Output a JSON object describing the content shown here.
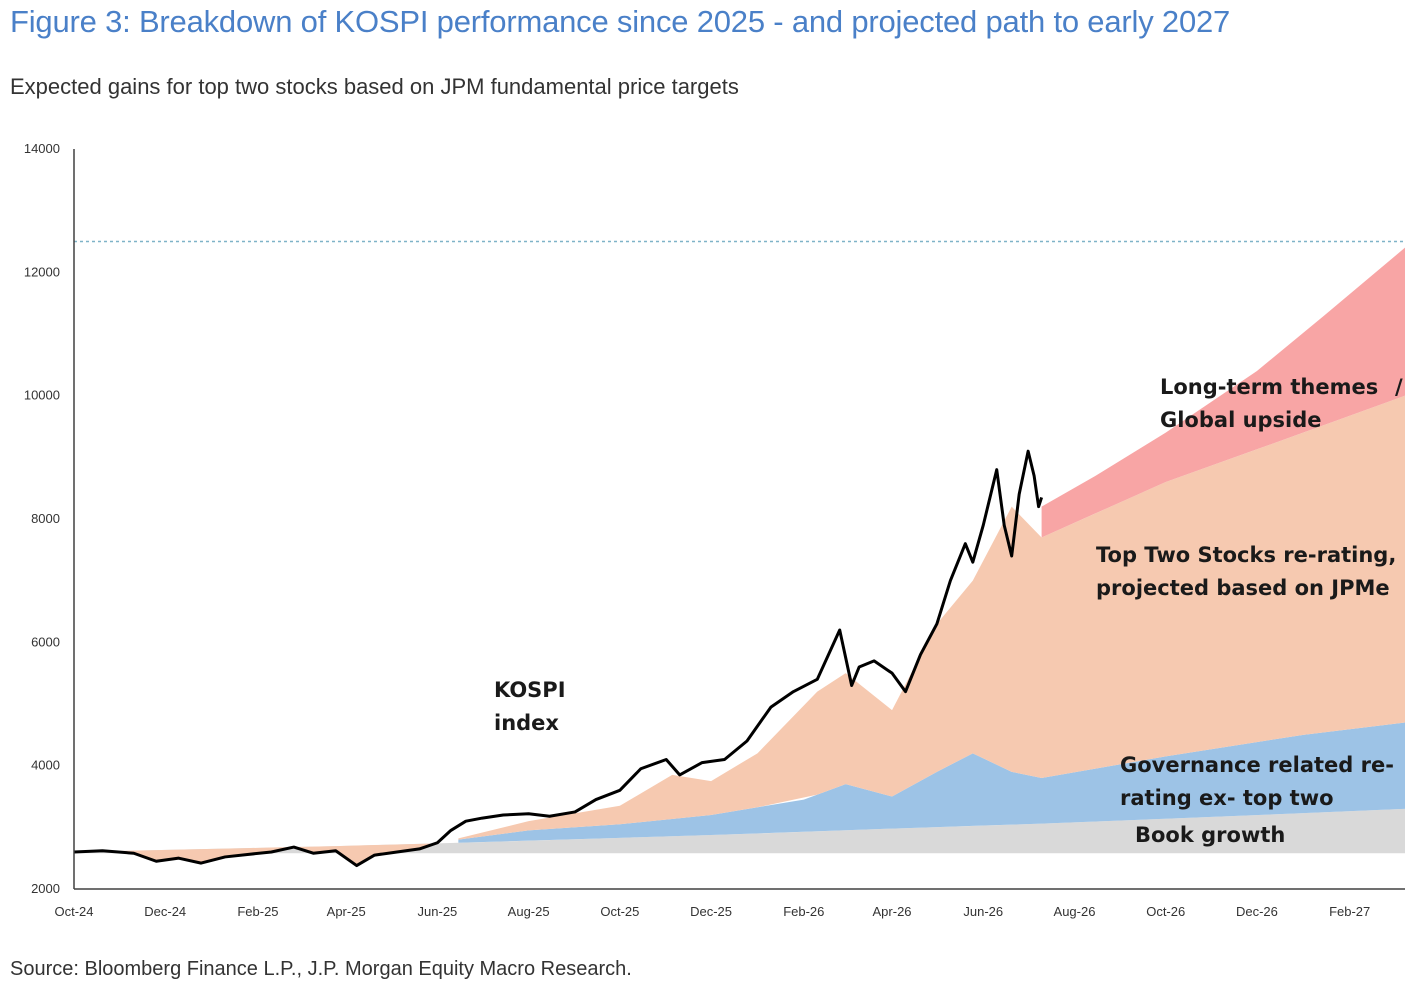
{
  "title": "Figure 3: Breakdown of KOSPI performance since 2025 - and projected path to early 2027",
  "subtitle": "Expected gains for top two stocks based on JPM fundamental price targets",
  "source": "Source: Bloomberg Finance L.P., J.P. Morgan Equity Macro Research.",
  "colors": {
    "title": "#4a80c8",
    "book_growth": "#d9d9d9",
    "governance": "#9dc3e6",
    "top_two": "#f6c9b0",
    "long_term": "#f8a5a5",
    "kospi_line": "#000000",
    "target_line": "#7fb3c8"
  },
  "chart_data": {
    "type": "area",
    "x_tick_labels": [
      "Oct-24",
      "Dec-24",
      "Feb-25",
      "Apr-25",
      "Jun-25",
      "Aug-25",
      "Oct-25",
      "Dec-25",
      "Feb-26",
      "Apr-26",
      "Jun-26",
      "Aug-26",
      "Oct-26",
      "Dec-26",
      "Feb-27"
    ],
    "y_tick_labels": [
      "2000",
      "4000",
      "6000",
      "8000",
      "10000",
      "12000",
      "14000"
    ],
    "ylim": [
      2000,
      14000
    ],
    "xlim": [
      "2024-10-01",
      "2027-03-10"
    ],
    "reference_line": {
      "value": 12500,
      "style": "dotted"
    },
    "series": [
      {
        "name": "Book growth",
        "annotation": [
          "Book growth"
        ],
        "x": [
          "2024-10-01",
          "2025-01-01",
          "2025-04-01",
          "2025-07-01",
          "2025-10-01",
          "2026-01-01",
          "2026-04-01",
          "2026-07-10",
          "2026-10-01",
          "2027-01-01",
          "2027-03-10"
        ],
        "y": [
          2600,
          2650,
          2700,
          2760,
          2830,
          2900,
          2980,
          3060,
          3140,
          3230,
          3300
        ]
      },
      {
        "name": "Governance related re-rating ex- top two",
        "annotation": [
          "Governance related re-",
          "rating ex- top two"
        ],
        "x": [
          "2025-06-15",
          "2025-08-01",
          "2025-10-01",
          "2025-12-01",
          "2026-02-01",
          "2026-03-01",
          "2026-04-01",
          "2026-05-01",
          "2026-05-25",
          "2026-06-20",
          "2026-07-10",
          "2026-10-01",
          "2027-01-01",
          "2027-03-10"
        ],
        "y": [
          2800,
          2950,
          3050,
          3200,
          3450,
          3700,
          3500,
          3900,
          4200,
          3900,
          3800,
          4150,
          4500,
          4700
        ]
      },
      {
        "name": "Top Two Stocks re-rating, projected based on JPMe",
        "annotation": [
          "Top Two Stocks re-rating,",
          "projected based on JPMe"
        ],
        "x": [
          "2025-06-15",
          "2025-08-01",
          "2025-10-01",
          "2025-11-05",
          "2025-12-01",
          "2026-01-01",
          "2026-02-10",
          "2026-03-01",
          "2026-04-01",
          "2026-05-01",
          "2026-05-25",
          "2026-06-20",
          "2026-07-10",
          "2026-10-01",
          "2027-01-01",
          "2027-03-10"
        ],
        "y": [
          2820,
          3100,
          3350,
          3850,
          3750,
          4200,
          5200,
          5500,
          4900,
          6300,
          7000,
          8200,
          7700,
          8600,
          9400,
          10000
        ]
      },
      {
        "name": "Long-term themes / Global upside",
        "annotation": [
          "Long-term themes",
          "Global upside",
          "/"
        ],
        "x": [
          "2026-07-10",
          "2026-08-15",
          "2026-10-01",
          "2026-12-01",
          "2027-01-15",
          "2027-03-10"
        ],
        "y": [
          8200,
          8700,
          9400,
          10400,
          11300,
          12400
        ]
      }
    ],
    "kospi": {
      "name": "KOSPI index",
      "annotation": [
        "KOSPI",
        "index"
      ],
      "x": [
        "2024-10-01",
        "2024-10-20",
        "2024-11-10",
        "2024-11-25",
        "2024-12-10",
        "2024-12-25",
        "2025-01-10",
        "2025-01-25",
        "2025-02-10",
        "2025-02-25",
        "2025-03-10",
        "2025-03-25",
        "2025-04-08",
        "2025-04-20",
        "2025-05-05",
        "2025-05-20",
        "2025-06-01",
        "2025-06-10",
        "2025-06-20",
        "2025-07-01",
        "2025-07-15",
        "2025-08-01",
        "2025-08-15",
        "2025-09-01",
        "2025-09-15",
        "2025-10-01",
        "2025-10-15",
        "2025-11-01",
        "2025-11-10",
        "2025-11-25",
        "2025-12-10",
        "2025-12-25",
        "2026-01-10",
        "2026-01-25",
        "2026-02-10",
        "2026-02-25",
        "2026-03-05",
        "2026-03-10",
        "2026-03-20",
        "2026-04-01",
        "2026-04-10",
        "2026-04-20",
        "2026-05-01",
        "2026-05-10",
        "2026-05-20",
        "2026-05-25",
        "2026-06-01",
        "2026-06-05",
        "2026-06-10",
        "2026-06-15",
        "2026-06-20",
        "2026-06-25",
        "2026-07-01",
        "2026-07-05",
        "2026-07-08",
        "2026-07-10"
      ],
      "y": [
        2600,
        2620,
        2580,
        2450,
        2500,
        2420,
        2520,
        2560,
        2600,
        2680,
        2580,
        2620,
        2380,
        2550,
        2600,
        2650,
        2750,
        2950,
        3100,
        3150,
        3200,
        3220,
        3180,
        3250,
        3450,
        3600,
        3950,
        4100,
        3850,
        4050,
        4100,
        4400,
        4950,
        5200,
        5400,
        6200,
        5300,
        5600,
        5700,
        5500,
        5200,
        5800,
        6300,
        7000,
        7600,
        7300,
        7900,
        8300,
        8800,
        7900,
        7400,
        8400,
        9100,
        8700,
        8200,
        8350
      ]
    }
  }
}
